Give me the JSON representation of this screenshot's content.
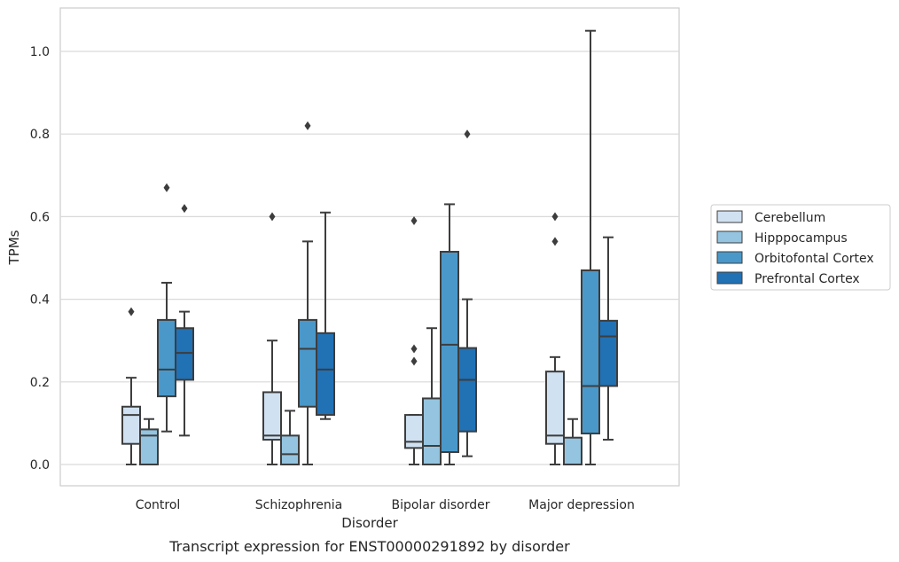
{
  "chart_data": {
    "type": "box",
    "xlabel": "Disorder",
    "ylabel": "TPMs",
    "caption": "Transcript expression for ENST00000291892 by disorder",
    "categories": [
      "Control",
      "Schizophrenia",
      "Bipolar disorder",
      "Major depression"
    ],
    "ylim": [
      -0.05,
      1.1
    ],
    "yticks": [
      "0.0",
      "0.2",
      "0.4",
      "0.6",
      "0.8",
      "1.0"
    ],
    "grid": "horizontal",
    "legend_position": "right",
    "series": [
      {
        "name": "Cerebellum",
        "color": "#d0e1f2",
        "boxes": [
          {
            "whisker_low": 0.0,
            "q1": 0.05,
            "median": 0.12,
            "q3": 0.14,
            "whisker_high": 0.21,
            "outliers": [
              0.37
            ]
          },
          {
            "whisker_low": 0.0,
            "q1": 0.06,
            "median": 0.07,
            "q3": 0.175,
            "whisker_high": 0.3,
            "outliers": [
              0.6
            ]
          },
          {
            "whisker_low": 0.0,
            "q1": 0.04,
            "median": 0.055,
            "q3": 0.12,
            "whisker_high": 0.12,
            "outliers": [
              0.59,
              0.28,
              0.25
            ]
          },
          {
            "whisker_low": 0.0,
            "q1": 0.05,
            "median": 0.07,
            "q3": 0.225,
            "whisker_high": 0.26,
            "outliers": [
              0.6,
              0.54
            ]
          }
        ]
      },
      {
        "name": "Hipppocampus",
        "color": "#94c4df",
        "boxes": [
          {
            "whisker_low": 0.0,
            "q1": 0.0,
            "median": 0.07,
            "q3": 0.085,
            "whisker_high": 0.11,
            "outliers": []
          },
          {
            "whisker_low": 0.0,
            "q1": 0.0,
            "median": 0.025,
            "q3": 0.07,
            "whisker_high": 0.13,
            "outliers": []
          },
          {
            "whisker_low": 0.0,
            "q1": 0.0,
            "median": 0.045,
            "q3": 0.16,
            "whisker_high": 0.33,
            "outliers": []
          },
          {
            "whisker_low": 0.0,
            "q1": 0.0,
            "median": 0.0,
            "q3": 0.065,
            "whisker_high": 0.11,
            "outliers": []
          }
        ]
      },
      {
        "name": "Orbitofontal Cortex",
        "color": "#4a98c9",
        "boxes": [
          {
            "whisker_low": 0.08,
            "q1": 0.165,
            "median": 0.23,
            "q3": 0.35,
            "whisker_high": 0.44,
            "outliers": [
              0.67
            ]
          },
          {
            "whisker_low": 0.0,
            "q1": 0.14,
            "median": 0.28,
            "q3": 0.35,
            "whisker_high": 0.54,
            "outliers": [
              0.82
            ]
          },
          {
            "whisker_low": 0.0,
            "q1": 0.03,
            "median": 0.29,
            "q3": 0.515,
            "whisker_high": 0.63,
            "outliers": []
          },
          {
            "whisker_low": 0.0,
            "q1": 0.075,
            "median": 0.19,
            "q3": 0.47,
            "whisker_high": 1.05,
            "outliers": []
          }
        ]
      },
      {
        "name": "Prefrontal Cortex",
        "color": "#2171b5",
        "boxes": [
          {
            "whisker_low": 0.07,
            "q1": 0.205,
            "median": 0.27,
            "q3": 0.33,
            "whisker_high": 0.37,
            "outliers": [
              0.62
            ]
          },
          {
            "whisker_low": 0.11,
            "q1": 0.12,
            "median": 0.23,
            "q3": 0.318,
            "whisker_high": 0.61,
            "outliers": []
          },
          {
            "whisker_low": 0.02,
            "q1": 0.08,
            "median": 0.205,
            "q3": 0.282,
            "whisker_high": 0.4,
            "outliers": [
              0.8
            ]
          },
          {
            "whisker_low": 0.06,
            "q1": 0.19,
            "median": 0.31,
            "q3": 0.348,
            "whisker_high": 0.55,
            "outliers": []
          }
        ]
      }
    ]
  }
}
